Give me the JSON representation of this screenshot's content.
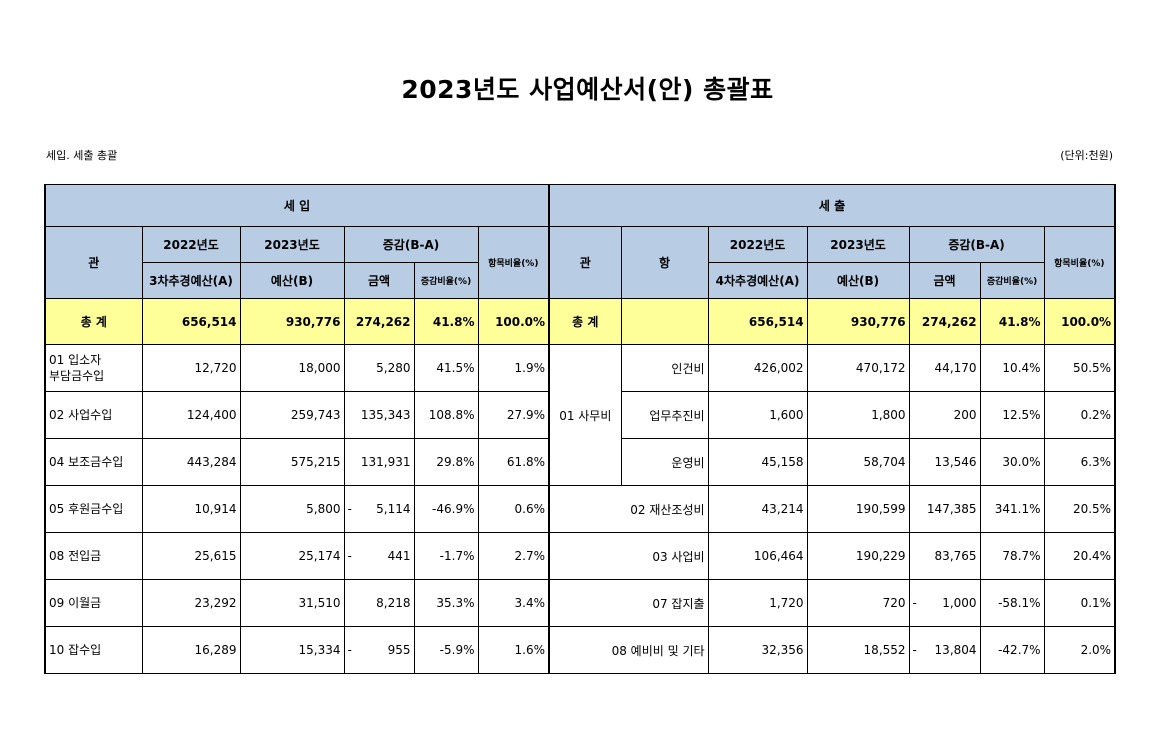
{
  "title": "2023년도 사업예산서(안) 총괄표",
  "subtitle": "세입. 세출 총괄",
  "unit": "(단위:천원)",
  "income": {
    "section_label": "세  입",
    "headers": {
      "gwan": "관",
      "y2022_top": "2022년도",
      "y2022_bottom": "3차추경예산(A)",
      "y2023_top": "2023년도",
      "y2023_bottom": "예산(B)",
      "diff": "증감(B-A)",
      "diff_amount": "금액",
      "diff_rate": "증감비율(%)",
      "item_ratio": "항목비율(%)"
    },
    "total": {
      "label": "총  계",
      "a": "656,514",
      "b": "930,776",
      "diff": "274,262",
      "rate": "41.8%",
      "ratio": "100.0%"
    },
    "rows": [
      {
        "name": "01 입소자\n부담금수입",
        "a": "12,720",
        "b": "18,000",
        "neg": "",
        "diff": "5,280",
        "rate": "41.5%",
        "ratio": "1.9%"
      },
      {
        "name": "02 사업수입",
        "a": "124,400",
        "b": "259,743",
        "neg": "",
        "diff": "135,343",
        "rate": "108.8%",
        "ratio": "27.9%"
      },
      {
        "name": "04 보조금수입",
        "a": "443,284",
        "b": "575,215",
        "neg": "",
        "diff": "131,931",
        "rate": "29.8%",
        "ratio": "61.8%"
      },
      {
        "name": "05 후원금수입",
        "a": "10,914",
        "b": "5,800",
        "neg": "-",
        "diff": "5,114",
        "rate": "-46.9%",
        "ratio": "0.6%"
      },
      {
        "name": "08 전입금",
        "a": "25,615",
        "b": "25,174",
        "neg": "-",
        "diff": "441",
        "rate": "-1.7%",
        "ratio": "2.7%"
      },
      {
        "name": "09 이월금",
        "a": "23,292",
        "b": "31,510",
        "neg": "",
        "diff": "8,218",
        "rate": "35.3%",
        "ratio": "3.4%"
      },
      {
        "name": "10 잡수입",
        "a": "16,289",
        "b": "15,334",
        "neg": "-",
        "diff": "955",
        "rate": "-5.9%",
        "ratio": "1.6%"
      }
    ]
  },
  "expense": {
    "section_label": "세  출",
    "headers": {
      "gwan": "관",
      "hang": "항",
      "y2022_top": "2022년도",
      "y2022_bottom": "4차추경예산(A)",
      "y2023_top": "2023년도",
      "y2023_bottom": "예산(B)",
      "diff": "증감(B-A)",
      "diff_amount": "금액",
      "diff_rate": "증감비율(%)",
      "item_ratio": "항목비율(%)"
    },
    "total": {
      "label": "총  계",
      "a": "656,514",
      "b": "930,776",
      "diff": "274,262",
      "rate": "41.8%",
      "ratio": "100.0%"
    },
    "office_group": "01 사무비",
    "rows": [
      {
        "name": "인건비",
        "a": "426,002",
        "b": "470,172",
        "neg": "",
        "diff": "44,170",
        "rate": "10.4%",
        "ratio": "50.5%"
      },
      {
        "name": "업무추진비",
        "a": "1,600",
        "b": "1,800",
        "neg": "",
        "diff": "200",
        "rate": "12.5%",
        "ratio": "0.2%"
      },
      {
        "name": "운영비",
        "a": "45,158",
        "b": "58,704",
        "neg": "",
        "diff": "13,546",
        "rate": "30.0%",
        "ratio": "6.3%"
      },
      {
        "name": "02 재산조성비",
        "a": "43,214",
        "b": "190,599",
        "neg": "",
        "diff": "147,385",
        "rate": "341.1%",
        "ratio": "20.5%"
      },
      {
        "name": "03 사업비",
        "a": "106,464",
        "b": "190,229",
        "neg": "",
        "diff": "83,765",
        "rate": "78.7%",
        "ratio": "20.4%"
      },
      {
        "name": "07 잡지출",
        "a": "1,720",
        "b": "720",
        "neg": "-",
        "diff": "1,000",
        "rate": "-58.1%",
        "ratio": "0.1%"
      },
      {
        "name": "08 예비비 및 기타",
        "a": "32,356",
        "b": "18,552",
        "neg": "-",
        "diff": "13,804",
        "rate": "-42.7%",
        "ratio": "2.0%"
      }
    ]
  }
}
